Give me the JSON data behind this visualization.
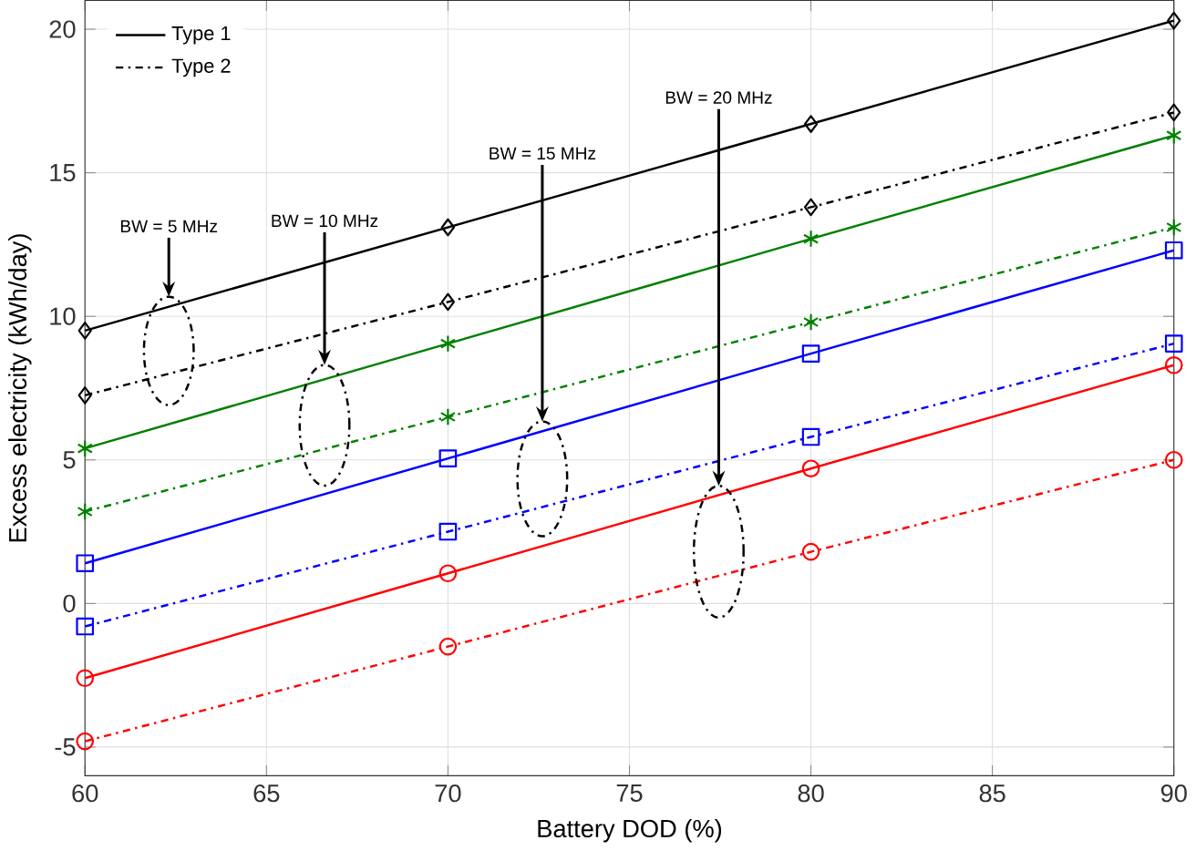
{
  "chart_data": {
    "type": "line",
    "xlabel": "Battery DOD (%)",
    "ylabel": "Excess electricity (kWh/day)",
    "x": [
      60,
      70,
      80,
      90
    ],
    "xlim": [
      60,
      90
    ],
    "xticks": [
      60,
      65,
      70,
      75,
      80,
      85,
      90
    ],
    "ylim": [
      -6,
      21
    ],
    "yticks": [
      -5,
      0,
      5,
      10,
      15,
      20
    ],
    "grid": true,
    "legend": "top left",
    "series": [
      {
        "name": "Type 1",
        "color": "#000000",
        "marker": "diamond",
        "line_style": "solid",
        "values": [
          9.5,
          13.1,
          16.7,
          20.3
        ]
      },
      {
        "name": "Type 2",
        "color": "#000000",
        "marker": "diamond",
        "line_style": "dashdot",
        "values": [
          7.25,
          10.5,
          13.8,
          17.1
        ]
      },
      {
        "color": "#008000",
        "marker": "cross",
        "line_style": "solid",
        "values": [
          5.4,
          9.05,
          12.7,
          16.3
        ]
      },
      {
        "color": "#008000",
        "marker": "cross",
        "line_style": "dashdot",
        "values": [
          3.2,
          6.5,
          9.8,
          13.1
        ]
      },
      {
        "color": "#0000ff",
        "marker": "square",
        "line_style": "solid",
        "values": [
          1.4,
          5.05,
          8.7,
          12.3
        ]
      },
      {
        "color": "#0000ff",
        "marker": "square",
        "line_style": "dashdot",
        "values": [
          -0.8,
          2.5,
          5.8,
          9.05
        ]
      },
      {
        "color": "#ff0000",
        "marker": "circle",
        "line_style": "solid",
        "values": [
          -2.6,
          1.05,
          4.7,
          8.3
        ]
      },
      {
        "color": "#ff0000",
        "marker": "circle",
        "line_style": "dashdot",
        "values": [
          -4.8,
          -1.5,
          1.8,
          5.0
        ]
      }
    ],
    "annotations": [
      "BW = 5 MHz",
      "BW = 10 MHz",
      "BW = 15 MHz",
      "BW = 20 MHz"
    ]
  }
}
